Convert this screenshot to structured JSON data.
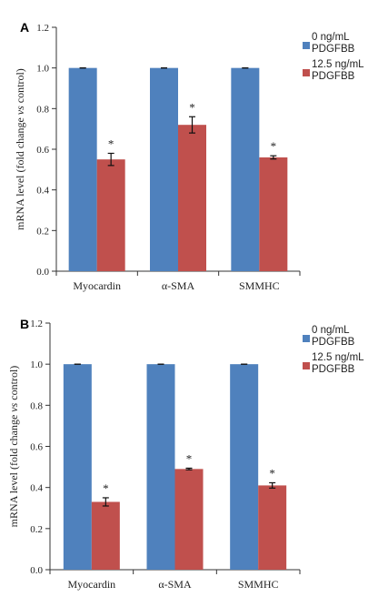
{
  "chart_data": [
    {
      "type": "bar",
      "panel_label": "A",
      "ylabel": "mRNA level (fold change vs control)",
      "ylim": [
        0,
        1.2
      ],
      "yticks": [
        "0.0",
        "0.2",
        "0.4",
        "0.6",
        "0.8",
        "1.0",
        "1.2"
      ],
      "categories": [
        "Myocardin",
        "α-SMA",
        "SMMHC"
      ],
      "series": [
        {
          "name": "0 ng/mL PDGFBB",
          "color": "#4f81bd",
          "values": [
            1.0,
            1.0,
            1.0
          ],
          "errors": [
            0.0,
            0.0,
            0.0
          ],
          "markers": [
            "",
            "",
            ""
          ]
        },
        {
          "name": "12.5 ng/mL PDGFBB",
          "color": "#c0504d",
          "values": [
            0.55,
            0.72,
            0.56
          ],
          "errors": [
            0.03,
            0.04,
            0.008
          ],
          "markers": [
            "*",
            "*",
            "*"
          ]
        }
      ],
      "legend_position": "top-right",
      "grid": false
    },
    {
      "type": "bar",
      "panel_label": "B",
      "ylabel": "mRNA level (fold change vs control)",
      "ylim": [
        0,
        1.2
      ],
      "yticks": [
        "0.0",
        "0.2",
        "0.4",
        "0.6",
        "0.8",
        "1.0",
        "1.2"
      ],
      "categories": [
        "Myocardin",
        "α-SMA",
        "SMMHC"
      ],
      "series": [
        {
          "name": "0 ng/mL PDGFBB",
          "color": "#4f81bd",
          "values": [
            1.0,
            1.0,
            1.0
          ],
          "errors": [
            0.0,
            0.0,
            0.0
          ],
          "markers": [
            "",
            "",
            ""
          ]
        },
        {
          "name": "12.5 ng/mL PDGFBB",
          "color": "#c0504d",
          "values": [
            0.33,
            0.49,
            0.41
          ],
          "errors": [
            0.02,
            0.004,
            0.013
          ],
          "markers": [
            "*",
            "*",
            "*"
          ]
        }
      ],
      "legend_position": "top-right",
      "grid": false
    }
  ]
}
